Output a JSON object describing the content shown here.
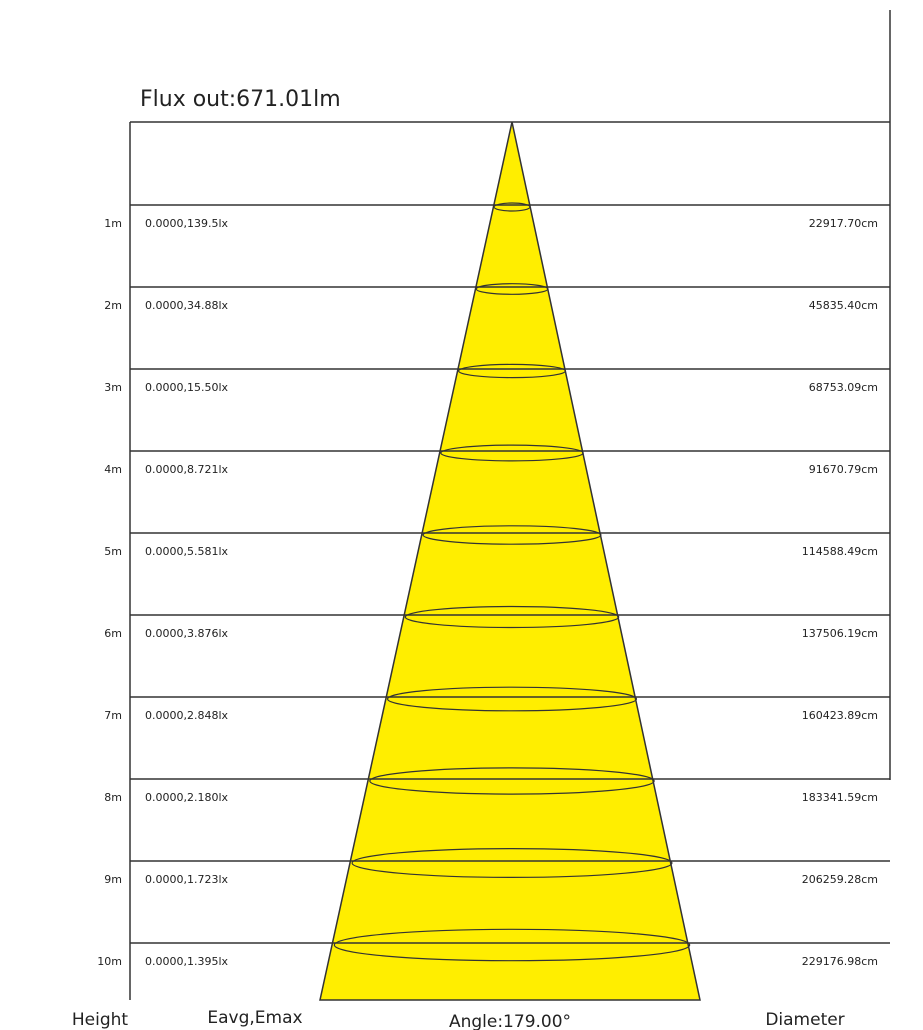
{
  "header": {
    "title": "Flux out:671.01lm"
  },
  "rows": [
    {
      "height": "1m",
      "illuminance": "0.0000,139.5lx",
      "diameter": "22917.70cm"
    },
    {
      "height": "2m",
      "illuminance": "0.0000,34.88lx",
      "diameter": "45835.40cm"
    },
    {
      "height": "3m",
      "illuminance": "0.0000,15.50lx",
      "diameter": "68753.09cm"
    },
    {
      "height": "4m",
      "illuminance": "0.0000,8.721lx",
      "diameter": "91670.79cm"
    },
    {
      "height": "5m",
      "illuminance": "0.0000,5.581lx",
      "diameter": "114588.49cm"
    },
    {
      "height": "6m",
      "illuminance": "0.0000,3.876lx",
      "diameter": "137506.19cm"
    },
    {
      "height": "7m",
      "illuminance": "0.0000,2.848lx",
      "diameter": "160423.89cm"
    },
    {
      "height": "8m",
      "illuminance": "0.0000,2.180lx",
      "diameter": "183341.59cm"
    },
    {
      "height": "9m",
      "illuminance": "0.0000,1.723lx",
      "diameter": "206259.28cm"
    },
    {
      "height": "10m",
      "illuminance": "0.0000,1.395lx",
      "diameter": "229176.98cm"
    }
  ],
  "footer": {
    "height": "Height",
    "illuminance": "Eavg,Emax",
    "angle": "Angle:179.00°",
    "diameter": "Diameter"
  }
}
